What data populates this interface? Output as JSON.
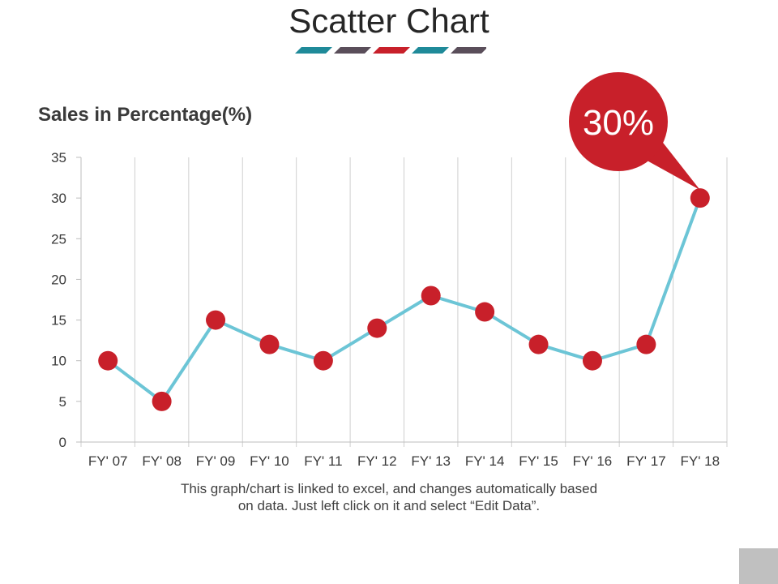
{
  "page": {
    "title": "Scatter Chart",
    "accent_colors": [
      "#1f8a99",
      "#5a4e5a",
      "#c8202a",
      "#1f8a99",
      "#5a4e5a"
    ],
    "caption_line1": "This graph/chart is linked to excel, and changes automatically based",
    "caption_line2": "on data. Just left click on it and select “Edit Data”."
  },
  "chart_data": {
    "type": "line",
    "title": "Sales in Percentage(%)",
    "xlabel": "",
    "ylabel": "",
    "categories": [
      "FY' 07",
      "FY' 08",
      "FY' 09",
      "FY' 10",
      "FY' 11",
      "FY' 12",
      "FY' 13",
      "FY' 14",
      "FY' 15",
      "FY' 16",
      "FY' 17",
      "FY' 18"
    ],
    "series": [
      {
        "values": [
          10,
          5,
          15,
          12,
          10,
          14,
          18,
          16,
          12,
          10,
          12,
          30
        ],
        "line_color": "#6cc5d6",
        "marker_color": "#c8202a"
      }
    ],
    "ylim": [
      0,
      35
    ],
    "yticks": [
      0,
      5,
      10,
      15,
      20,
      25,
      30,
      35
    ],
    "grid": "vertical",
    "callout": {
      "text": "30%",
      "category": "FY' 18",
      "color": "#c8202a"
    }
  }
}
